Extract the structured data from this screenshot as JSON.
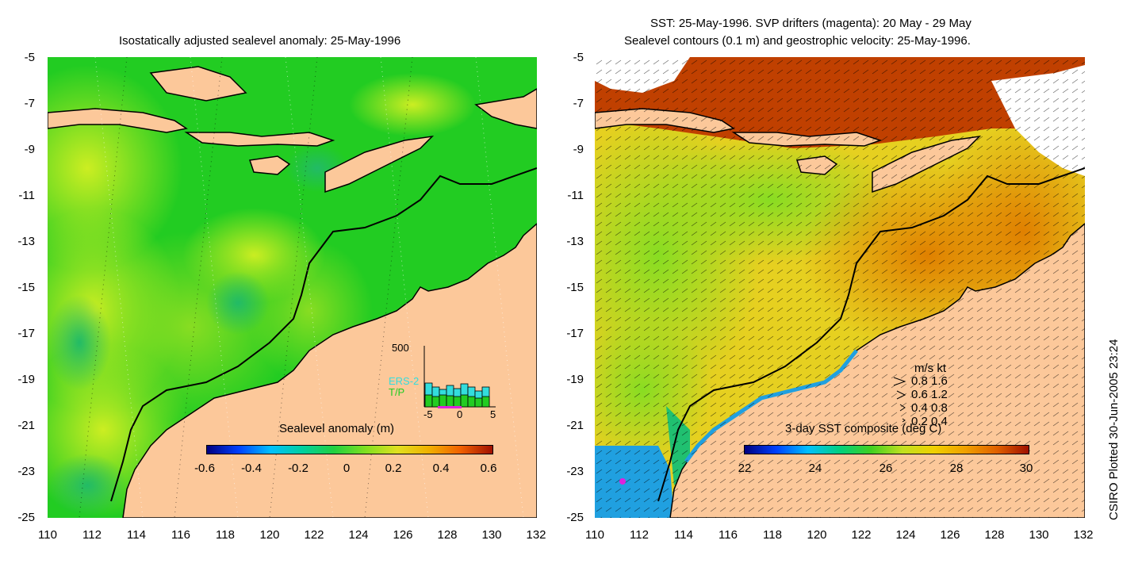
{
  "left_panel": {
    "title": "Isostatically adjusted sealevel anomaly: 25-May-1996",
    "colorbar_label": "Sealevel anomaly (m)",
    "colorbar_ticks": [
      "-0.6",
      "-0.4",
      "-0.2",
      "0",
      "0.2",
      "0.4",
      "0.6"
    ],
    "inset": {
      "ymax_label": "500",
      "legend": [
        "ERS-2",
        "T/P"
      ],
      "legend_colors": [
        "#33dddd",
        "#22cc22"
      ],
      "x_ticks": [
        "-5",
        "0",
        "5"
      ]
    }
  },
  "right_panel": {
    "title_line1": "SST: 25-May-1996. SVP drifters (magenta): 20 May - 29 May",
    "title_line2": "Sealevel contours (0.1 m) and geostrophic velocity: 25-May-1996.",
    "colorbar_label": "3-day SST composite (deg C)",
    "colorbar_ticks": [
      "22",
      "24",
      "26",
      "28",
      "30"
    ],
    "vector_key": {
      "header": "m/s  kt",
      "rows": [
        "0.8  1.6",
        "0.6  1.2",
        "0.4  0.8",
        "0.2  0.4"
      ]
    }
  },
  "axes": {
    "y_ticks": [
      "-5",
      "-7",
      "-9",
      "-11",
      "-13",
      "-15",
      "-17",
      "-19",
      "-21",
      "-23",
      "-25"
    ],
    "x_ticks": [
      "110",
      "112",
      "114",
      "116",
      "118",
      "120",
      "122",
      "124",
      "126",
      "128",
      "130",
      "132"
    ]
  },
  "credit": "CSIRO Plotted 30-Jun-2005 23:24",
  "colors": {
    "land": "#fcc89a",
    "ocean_green": "#22cc22",
    "ocean_yellow": "#aaee22",
    "warm_orange": "#f0a000",
    "warm_red": "#c04000"
  }
}
